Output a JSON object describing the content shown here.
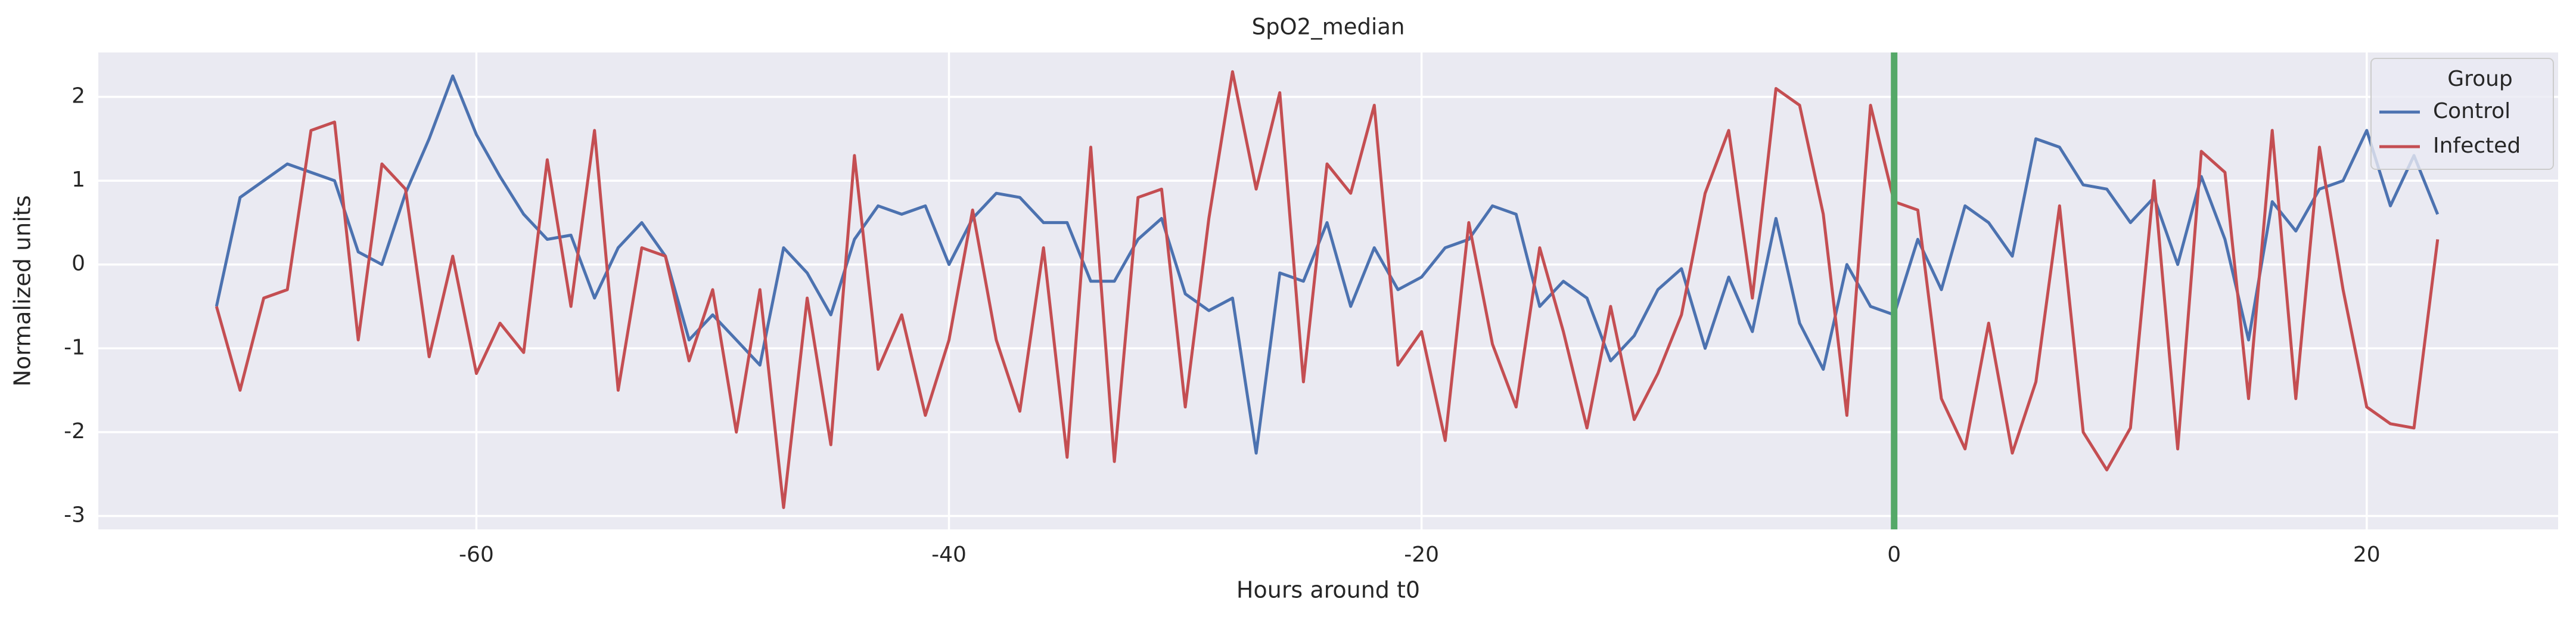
{
  "chart_data": {
    "type": "line",
    "title": "SpO2_median",
    "xlabel": "Hours around t0",
    "ylabel": "Normalized units",
    "legend_title": "Group",
    "legend_position": "upper right",
    "grid": true,
    "xlim": [
      -76,
      28.1
    ],
    "ylim": [
      -3.16,
      2.53
    ],
    "xticks": [
      -60,
      -40,
      -20,
      0,
      20
    ],
    "yticks": [
      -3,
      -2,
      -1,
      0,
      1,
      2
    ],
    "vline": {
      "x": 0,
      "color": "#55a868"
    },
    "x": [
      -71,
      -70,
      -69,
      -68,
      -67,
      -66,
      -65,
      -64,
      -63,
      -62,
      -61,
      -60,
      -59,
      -58,
      -57,
      -56,
      -55,
      -54,
      -53,
      -52,
      -51,
      -50,
      -49,
      -48,
      -47,
      -46,
      -45,
      -44,
      -43,
      -42,
      -41,
      -40,
      -39,
      -38,
      -37,
      -36,
      -35,
      -34,
      -33,
      -32,
      -31,
      -30,
      -29,
      -28,
      -27,
      -26,
      -25,
      -24,
      -23,
      -22,
      -21,
      -20,
      -19,
      -18,
      -17,
      -16,
      -15,
      -14,
      -13,
      -12,
      -11,
      -10,
      -9,
      -8,
      -7,
      -6,
      -5,
      -4,
      -3,
      -2,
      -1,
      0,
      1,
      2,
      3,
      4,
      5,
      6,
      7,
      8,
      9,
      10,
      11,
      12,
      13,
      14,
      15,
      16,
      17,
      18,
      19,
      20,
      21,
      22,
      23
    ],
    "series": [
      {
        "name": "Control",
        "color": "#4c72b0",
        "values": [
          -0.5,
          0.8,
          1.0,
          1.2,
          1.1,
          1.0,
          0.15,
          0.0,
          0.85,
          1.5,
          2.25,
          1.55,
          1.05,
          0.6,
          0.3,
          0.35,
          -0.4,
          0.2,
          0.5,
          0.1,
          -0.9,
          -0.6,
          -0.9,
          -1.2,
          0.2,
          -0.1,
          -0.6,
          0.3,
          0.7,
          0.6,
          0.7,
          0.0,
          0.55,
          0.85,
          0.8,
          0.5,
          0.5,
          -0.2,
          -0.2,
          0.3,
          0.55,
          -0.35,
          -0.55,
          -0.4,
          -2.25,
          -0.1,
          -0.2,
          0.5,
          -0.5,
          0.2,
          -0.3,
          -0.15,
          0.2,
          0.3,
          0.7,
          0.6,
          -0.5,
          -0.2,
          -0.4,
          -1.15,
          -0.85,
          -0.3,
          -0.05,
          -1.0,
          -0.15,
          -0.8,
          0.55,
          -0.7,
          -1.25,
          0.0,
          -0.5,
          -0.6,
          0.3,
          -0.3,
          0.7,
          0.5,
          0.1,
          1.5,
          1.4,
          0.95,
          0.9,
          0.5,
          0.8,
          0.0,
          1.05,
          0.3,
          -0.9,
          0.75,
          0.4,
          0.9,
          1.0,
          1.6,
          0.7,
          1.3,
          0.6
        ]
      },
      {
        "name": "Infected",
        "color": "#c44e52",
        "values": [
          -0.5,
          -1.5,
          -0.4,
          -0.3,
          1.6,
          1.7,
          -0.9,
          1.2,
          0.9,
          -1.1,
          0.1,
          -1.3,
          -0.7,
          -1.05,
          1.25,
          -0.5,
          1.6,
          -1.5,
          0.2,
          0.1,
          -1.15,
          -0.3,
          -2.0,
          -0.3,
          -2.9,
          -0.4,
          -2.15,
          1.3,
          -1.25,
          -0.6,
          -1.8,
          -0.9,
          0.65,
          -0.9,
          -1.75,
          0.2,
          -2.3,
          1.4,
          -2.35,
          0.8,
          0.9,
          -1.7,
          0.55,
          2.3,
          0.9,
          2.05,
          -1.4,
          1.2,
          0.85,
          1.9,
          -1.2,
          -0.8,
          -2.1,
          0.5,
          -0.95,
          -1.7,
          0.2,
          -0.8,
          -1.95,
          -0.5,
          -1.85,
          -1.3,
          -0.6,
          0.85,
          1.6,
          -0.4,
          2.1,
          1.9,
          0.6,
          -1.8,
          1.9,
          0.75,
          0.65,
          -1.6,
          -2.2,
          -0.7,
          -2.25,
          -1.4,
          0.7,
          -2.0,
          -2.45,
          -1.95,
          1.0,
          -2.2,
          1.35,
          1.1,
          -1.6,
          1.6,
          -1.6,
          1.4,
          -0.3,
          -1.7,
          -1.9,
          -1.95,
          0.3
        ]
      }
    ]
  }
}
